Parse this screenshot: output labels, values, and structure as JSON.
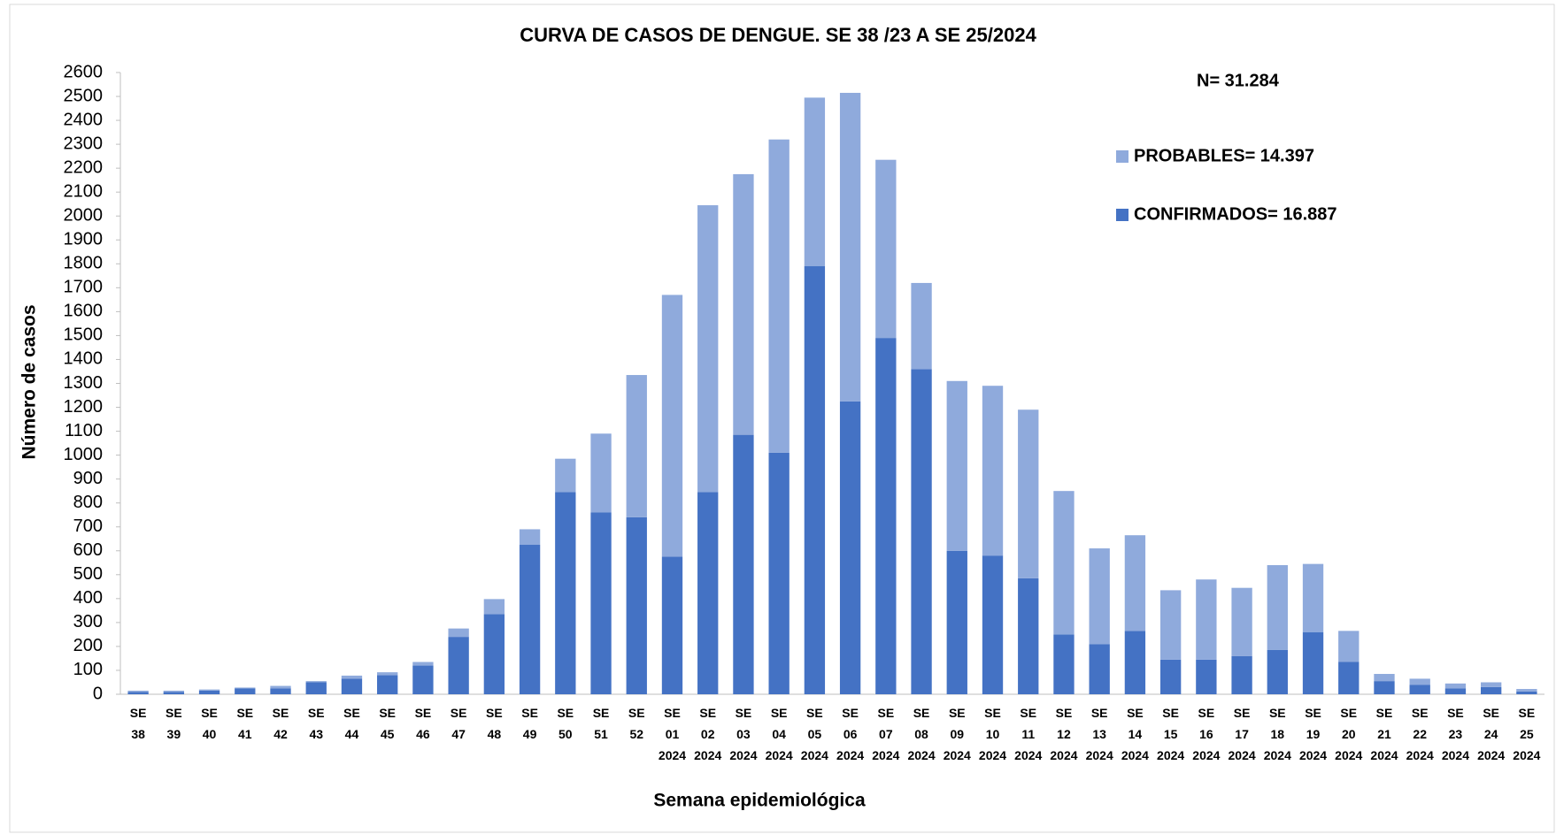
{
  "chart_data": {
    "type": "stacked_bar",
    "title": "CURVA DE CASOS DE DENGUE. SE 38 /23 A SE 25/2024",
    "x_label": "Semana epidemiológica",
    "y_label": "Número de casos",
    "annotation": "N= 31.284",
    "categories": [
      "SE 38",
      "SE 39",
      "SE 40",
      "SE 41",
      "SE 42",
      "SE 43",
      "SE 44",
      "SE 45",
      "SE 46",
      "SE 47",
      "SE 48",
      "SE 49",
      "SE 50",
      "SE 51",
      "SE 52",
      "SE 01 2024",
      "SE 02 2024",
      "SE 03 2024",
      "SE 04 2024",
      "SE 05 2024",
      "SE 06 2024",
      "SE 07 2024",
      "SE 08 2024",
      "SE 09 2024",
      "SE 10 2024",
      "SE 11 2024",
      "SE 12 2024",
      "SE 13 2024",
      "SE 14 2024",
      "SE 15 2024",
      "SE 16 2024",
      "SE 17 2024",
      "SE 18 2024",
      "SE 19 2024",
      "SE 20 2024",
      "SE 21 2024",
      "SE 22 2024",
      "SE 23 2024",
      "SE 24 2024",
      "SE 25 2024"
    ],
    "series": [
      {
        "name": "CONFIRMADOS= 16.887",
        "color": "#4472c4",
        "values": [
          10,
          10,
          15,
          25,
          25,
          50,
          65,
          80,
          120,
          240,
          335,
          625,
          845,
          760,
          740,
          575,
          845,
          1085,
          1010,
          1790,
          1225,
          1490,
          1360,
          600,
          580,
          485,
          250,
          210,
          265,
          145,
          145,
          160,
          185,
          260,
          135,
          55,
          40,
          25,
          30,
          12
        ]
      },
      {
        "name": "PROBABLES= 14.397",
        "color": "#8faadc",
        "values": [
          5,
          5,
          5,
          3,
          10,
          5,
          13,
          12,
          15,
          35,
          63,
          65,
          140,
          330,
          595,
          1095,
          1200,
          1090,
          1310,
          705,
          1290,
          745,
          360,
          710,
          710,
          705,
          600,
          400,
          400,
          290,
          335,
          285,
          355,
          285,
          130,
          30,
          25,
          20,
          20,
          10
        ]
      }
    ],
    "ylim": [
      0,
      2600
    ],
    "yticks": [
      0,
      100,
      200,
      300,
      400,
      500,
      600,
      700,
      800,
      900,
      1000,
      1100,
      1200,
      1300,
      1400,
      1500,
      1600,
      1700,
      1800,
      1900,
      2000,
      2100,
      2200,
      2300,
      2400,
      2500,
      2600
    ],
    "grid": false
  }
}
